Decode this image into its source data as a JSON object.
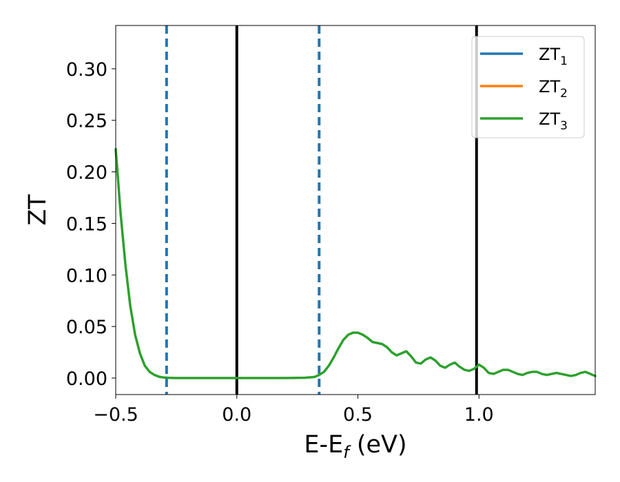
{
  "chart_data": {
    "type": "line",
    "xlabel": "E-E",
    "xlabel_sub": "f",
    "xlabel_unit": " (eV)",
    "ylabel": "ZT",
    "xlim": [
      -0.5,
      1.48
    ],
    "ylim": [
      -0.016,
      0.342
    ],
    "xticks": [
      -0.5,
      0.0,
      0.5,
      1.0
    ],
    "xtick_labels": [
      "−0.5",
      "0.0",
      "0.5",
      "1.0"
    ],
    "yticks": [
      0.0,
      0.05,
      0.1,
      0.15,
      0.2,
      0.25,
      0.3
    ],
    "ytick_labels": [
      "0.00",
      "0.05",
      "0.10",
      "0.15",
      "0.20",
      "0.25",
      "0.30"
    ],
    "grid": false,
    "legend_position": "top-right",
    "vertical_lines": [
      {
        "x": -0.29,
        "style": "dashed",
        "color": "#1f77b4"
      },
      {
        "x": 0.0,
        "style": "solid",
        "color": "#000000"
      },
      {
        "x": 0.34,
        "style": "dashed",
        "color": "#1f77b4"
      },
      {
        "x": 0.99,
        "style": "solid",
        "color": "#000000"
      }
    ],
    "series": [
      {
        "name": "ZT",
        "sub": "1",
        "color": "#1f77b4",
        "x": [],
        "y": []
      },
      {
        "name": "ZT",
        "sub": "2",
        "color": "#ff7f0e",
        "x": [],
        "y": []
      },
      {
        "name": "ZT",
        "sub": "3",
        "color": "#2ca02c",
        "x": [
          -0.5,
          -0.48,
          -0.46,
          -0.44,
          -0.42,
          -0.4,
          -0.38,
          -0.36,
          -0.34,
          -0.32,
          -0.3,
          -0.28,
          -0.25,
          -0.2,
          -0.1,
          0.0,
          0.1,
          0.2,
          0.28,
          0.32,
          0.34,
          0.36,
          0.38,
          0.4,
          0.42,
          0.44,
          0.46,
          0.48,
          0.5,
          0.52,
          0.54,
          0.56,
          0.58,
          0.6,
          0.62,
          0.64,
          0.66,
          0.68,
          0.7,
          0.72,
          0.74,
          0.76,
          0.78,
          0.8,
          0.82,
          0.84,
          0.86,
          0.88,
          0.9,
          0.92,
          0.94,
          0.96,
          0.98,
          1.0,
          1.02,
          1.04,
          1.06,
          1.08,
          1.1,
          1.12,
          1.14,
          1.16,
          1.18,
          1.2,
          1.22,
          1.24,
          1.26,
          1.28,
          1.3,
          1.32,
          1.34,
          1.36,
          1.38,
          1.4,
          1.42,
          1.44,
          1.46,
          1.48
        ],
        "y": [
          0.222,
          0.16,
          0.11,
          0.07,
          0.042,
          0.024,
          0.012,
          0.006,
          0.003,
          0.0012,
          0.0005,
          0.0002,
          0.0,
          0.0,
          0.0,
          0.0,
          0.0,
          0.0,
          0.0003,
          0.001,
          0.003,
          0.006,
          0.012,
          0.02,
          0.029,
          0.037,
          0.042,
          0.044,
          0.044,
          0.042,
          0.039,
          0.035,
          0.034,
          0.033,
          0.03,
          0.025,
          0.022,
          0.024,
          0.026,
          0.021,
          0.015,
          0.014,
          0.018,
          0.02,
          0.017,
          0.012,
          0.01,
          0.013,
          0.015,
          0.011,
          0.008,
          0.007,
          0.009,
          0.013,
          0.01,
          0.005,
          0.004,
          0.006,
          0.008,
          0.008,
          0.006,
          0.004,
          0.003,
          0.005,
          0.006,
          0.006,
          0.004,
          0.003,
          0.004,
          0.005,
          0.004,
          0.003,
          0.002,
          0.003,
          0.005,
          0.006,
          0.004,
          0.002
        ]
      }
    ]
  }
}
